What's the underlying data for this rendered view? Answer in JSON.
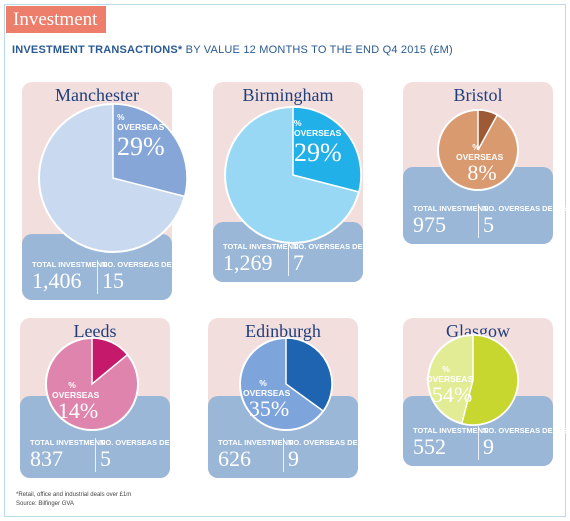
{
  "header": {
    "title": "Investment",
    "subtitle_bold": "INVESTMENT TRANSACTIONS*",
    "subtitle_rest": " BY VALUE 12 MONTHS TO THE END Q4 2015 (£M)"
  },
  "chart_data": [
    {
      "type": "pie",
      "title": "Manchester",
      "percent_overseas": 29,
      "percent_label": "29%",
      "overseas_label": "% OVERSEAS",
      "total_investment": "1,406",
      "overseas_deals": "15",
      "colors": {
        "slice": "#86a6d8",
        "rest": "#c9d9ef"
      }
    },
    {
      "type": "pie",
      "title": "Birmingham",
      "percent_overseas": 29,
      "percent_label": "29%",
      "overseas_label": "% OVERSEAS",
      "total_investment": "1,269",
      "overseas_deals": "7",
      "colors": {
        "slice": "#22b0e8",
        "rest": "#98d8f5"
      }
    },
    {
      "type": "pie",
      "title": "Bristol",
      "percent_overseas": 8,
      "percent_label": "8%",
      "overseas_label": "% OVERSEAS",
      "total_investment": "975",
      "overseas_deals": "5",
      "colors": {
        "slice": "#9d5a35",
        "rest": "#d99a70"
      }
    },
    {
      "type": "pie",
      "title": "Leeds",
      "percent_overseas": 14,
      "percent_label": "14%",
      "overseas_label": "% OVERSEAS",
      "total_investment": "837",
      "overseas_deals": "5",
      "colors": {
        "slice": "#c51a6c",
        "rest": "#df85ad"
      }
    },
    {
      "type": "pie",
      "title": "Edinburgh",
      "percent_overseas": 35,
      "percent_label": "35%",
      "overseas_label": "% OVERSEAS",
      "total_investment": "626",
      "overseas_deals": "9",
      "colors": {
        "slice": "#1f64b0",
        "rest": "#7ea4dc"
      }
    },
    {
      "type": "pie",
      "title": "Glasgow",
      "percent_overseas": 54,
      "percent_label": "54%",
      "overseas_label": "% OVERSEAS",
      "total_investment": "552",
      "overseas_deals": "9",
      "colors": {
        "slice": "#c7d730",
        "rest": "#e1ec94"
      }
    }
  ],
  "labels": {
    "total_investment": "TOTAL INVESTMENT",
    "overseas_deals": "NO. OVERSEAS DEALS"
  },
  "footer": {
    "note": "*Retail, office and industrial deals over £1m",
    "source": "Source: Bilfinger GVA"
  }
}
